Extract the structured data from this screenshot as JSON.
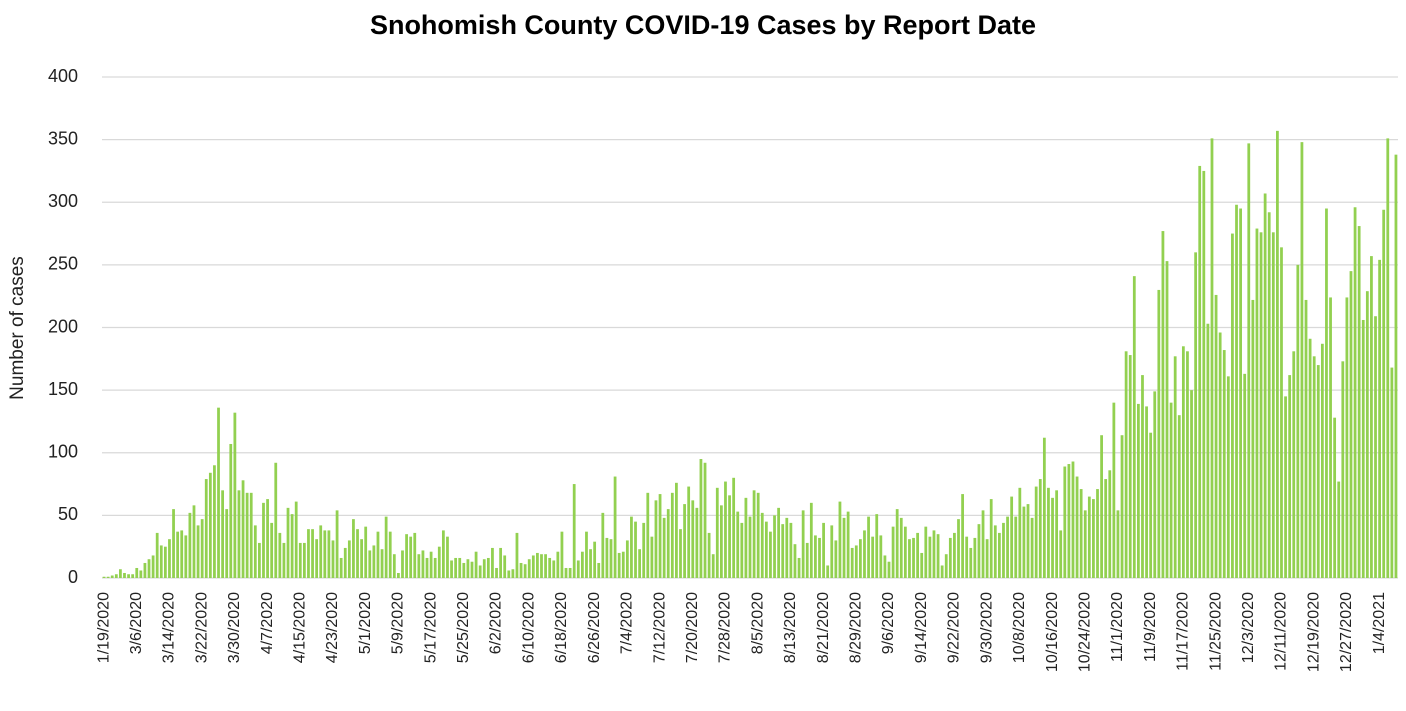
{
  "chart_data": {
    "type": "bar",
    "title": "Snohomish County COVID-19 Cases by Report Date",
    "y_label": "Number of cases",
    "color": "#92d050",
    "grid": true,
    "ylim": [
      0,
      400
    ],
    "yticks": [
      0,
      50,
      100,
      150,
      200,
      250,
      300,
      350,
      400
    ],
    "categories": [
      "1/19/2020",
      null,
      null,
      null,
      null,
      null,
      null,
      null,
      "3/6/2020",
      null,
      null,
      null,
      null,
      null,
      null,
      null,
      "3/14/2020",
      null,
      null,
      null,
      null,
      null,
      null,
      null,
      "3/22/2020",
      null,
      null,
      null,
      null,
      null,
      null,
      null,
      "3/30/2020",
      null,
      null,
      null,
      null,
      null,
      null,
      null,
      "4/7/2020",
      null,
      null,
      null,
      null,
      null,
      null,
      null,
      "4/15/2020",
      null,
      null,
      null,
      null,
      null,
      null,
      null,
      "4/23/2020",
      null,
      null,
      null,
      null,
      null,
      null,
      null,
      "5/1/2020",
      null,
      null,
      null,
      null,
      null,
      null,
      null,
      "5/9/2020",
      null,
      null,
      null,
      null,
      null,
      null,
      null,
      "5/17/2020",
      null,
      null,
      null,
      null,
      null,
      null,
      null,
      "5/25/2020",
      null,
      null,
      null,
      null,
      null,
      null,
      null,
      "6/2/2020",
      null,
      null,
      null,
      null,
      null,
      null,
      null,
      "6/10/2020",
      null,
      null,
      null,
      null,
      null,
      null,
      null,
      "6/18/2020",
      null,
      null,
      null,
      null,
      null,
      null,
      null,
      "6/26/2020",
      null,
      null,
      null,
      null,
      null,
      null,
      null,
      "7/4/2020",
      null,
      null,
      null,
      null,
      null,
      null,
      null,
      "7/12/2020",
      null,
      null,
      null,
      null,
      null,
      null,
      null,
      "7/20/2020",
      null,
      null,
      null,
      null,
      null,
      null,
      null,
      "7/28/2020",
      null,
      null,
      null,
      null,
      null,
      null,
      null,
      "8/5/2020",
      null,
      null,
      null,
      null,
      null,
      null,
      null,
      "8/13/2020",
      null,
      null,
      null,
      null,
      null,
      null,
      null,
      "8/21/2020",
      null,
      null,
      null,
      null,
      null,
      null,
      null,
      "8/29/2020",
      null,
      null,
      null,
      null,
      null,
      null,
      null,
      "9/6/2020",
      null,
      null,
      null,
      null,
      null,
      null,
      null,
      "9/14/2020",
      null,
      null,
      null,
      null,
      null,
      null,
      null,
      "9/22/2020",
      null,
      null,
      null,
      null,
      null,
      null,
      null,
      "9/30/2020",
      null,
      null,
      null,
      null,
      null,
      null,
      null,
      "10/8/2020",
      null,
      null,
      null,
      null,
      null,
      null,
      null,
      "10/16/2020",
      null,
      null,
      null,
      null,
      null,
      null,
      null,
      "10/24/2020",
      null,
      null,
      null,
      null,
      null,
      null,
      null,
      "11/1/2020",
      null,
      null,
      null,
      null,
      null,
      null,
      null,
      "11/9/2020",
      null,
      null,
      null,
      null,
      null,
      null,
      null,
      "11/17/2020",
      null,
      null,
      null,
      null,
      null,
      null,
      null,
      "11/25/2020",
      null,
      null,
      null,
      null,
      null,
      null,
      null,
      "12/3/2020",
      null,
      null,
      null,
      null,
      null,
      null,
      null,
      "12/11/2020",
      null,
      null,
      null,
      null,
      null,
      null,
      null,
      "12/19/2020",
      null,
      null,
      null,
      null,
      null,
      null,
      null,
      "12/27/2020",
      null,
      null,
      null,
      null,
      null,
      null,
      null,
      "1/4/2021",
      null,
      null,
      null,
      null
    ],
    "values": [
      1,
      1,
      2,
      3,
      7,
      4,
      3,
      3,
      8,
      6,
      12,
      15,
      18,
      36,
      26,
      25,
      31,
      55,
      37,
      38,
      34,
      52,
      58,
      42,
      47,
      79,
      84,
      90,
      136,
      70,
      55,
      107,
      132,
      70,
      78,
      68,
      68,
      42,
      28,
      60,
      63,
      44,
      92,
      36,
      28,
      56,
      51,
      61,
      28,
      28,
      39,
      39,
      31,
      42,
      38,
      38,
      30,
      54,
      16,
      24,
      30,
      47,
      39,
      31,
      41,
      22,
      26,
      37,
      23,
      49,
      37,
      19,
      4,
      22,
      35,
      33,
      36,
      19,
      22,
      16,
      21,
      16,
      25,
      38,
      33,
      14,
      16,
      16,
      12,
      15,
      13,
      21,
      10,
      15,
      16,
      24,
      8,
      24,
      18,
      6,
      7,
      36,
      12,
      11,
      15,
      18,
      20,
      19,
      19,
      16,
      14,
      21,
      37,
      8,
      8,
      75,
      14,
      21,
      37,
      23,
      29,
      12,
      52,
      32,
      31,
      81,
      20,
      21,
      30,
      49,
      45,
      23,
      44,
      68,
      33,
      62,
      67,
      48,
      55,
      68,
      76,
      39,
      59,
      73,
      62,
      56,
      95,
      92,
      36,
      19,
      72,
      58,
      77,
      66,
      80,
      53,
      44,
      64,
      49,
      70,
      68,
      52,
      45,
      37,
      50,
      56,
      43,
      48,
      44,
      27,
      16,
      54,
      28,
      60,
      34,
      32,
      44,
      10,
      42,
      30,
      61,
      48,
      53,
      24,
      26,
      31,
      38,
      49,
      33,
      51,
      34,
      18,
      13,
      41,
      55,
      48,
      41,
      31,
      32,
      36,
      20,
      41,
      33,
      38,
      35,
      10,
      19,
      32,
      36,
      47,
      67,
      33,
      24,
      32,
      43,
      54,
      31,
      63,
      42,
      36,
      44,
      49,
      65,
      49,
      72,
      57,
      59,
      48,
      73,
      79,
      112,
      72,
      64,
      70,
      38,
      89,
      91,
      93,
      81,
      71,
      54,
      65,
      63,
      71,
      114,
      79,
      86,
      140,
      54,
      114,
      181,
      178,
      241,
      139,
      162,
      137,
      116,
      149,
      230,
      277,
      253,
      140,
      177,
      130,
      185,
      181,
      150,
      260,
      329,
      325,
      203,
      351,
      226,
      196,
      182,
      161,
      275,
      298,
      295,
      163,
      347,
      222,
      279,
      276,
      307,
      292,
      276,
      357,
      264,
      145,
      162,
      181,
      250,
      348,
      222,
      191,
      177,
      170,
      187,
      295,
      224,
      128,
      77,
      173,
      224,
      245,
      296,
      281,
      206,
      229,
      257,
      209,
      254,
      294,
      351,
      168,
      338
    ]
  }
}
